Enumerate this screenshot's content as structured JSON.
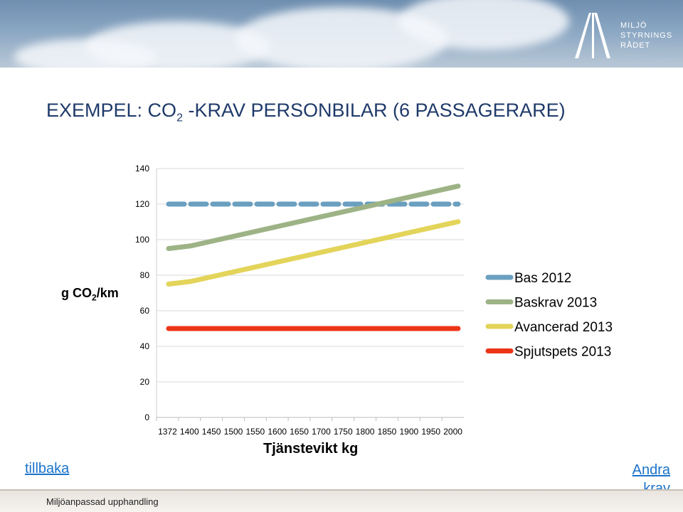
{
  "header": {
    "logo_lines": [
      "MILJÖ",
      "STYRNINGS",
      "RÅDET"
    ]
  },
  "title": {
    "prefix": "EXEMPEL: CO",
    "subscript": "2",
    "suffix": " -KRAV PERSONBILAR (6 PASSAGERARE)"
  },
  "axis": {
    "ylabel_prefix": "g CO",
    "ylabel_sub": "2",
    "ylabel_suffix": "/km",
    "xlabel": "Tjänstevikt kg"
  },
  "nav": {
    "back_label": "tillbaka",
    "forward_label": "Andra krav"
  },
  "footer": {
    "text": "Miljöanpassad upphandling"
  },
  "colors": {
    "bas": "#6a9fc0",
    "baskrav": "#9db386",
    "avancerad": "#e3d45a",
    "spjutspets": "#ec3417",
    "title": "#1f3a6a",
    "link": "#1a73c9"
  },
  "chart_data": {
    "type": "line",
    "x": [
      "1372",
      "1400",
      "1450",
      "1500",
      "1550",
      "1600",
      "1650",
      "1700",
      "1750",
      "1800",
      "1850",
      "1900",
      "1950",
      "2000"
    ],
    "ylim": [
      0,
      140
    ],
    "yticks": [
      0,
      20,
      40,
      60,
      80,
      100,
      120,
      140
    ],
    "grid": true,
    "legend_position": "right",
    "series": [
      {
        "name": "Bas 2012",
        "style": "dashed",
        "values": [
          120,
          120,
          120,
          120,
          120,
          120,
          120,
          120,
          120,
          120,
          120,
          120,
          120,
          120
        ]
      },
      {
        "name": "Baskrav 2013",
        "style": "solid",
        "values": [
          95,
          96.5,
          99.3,
          102.1,
          104.9,
          107.7,
          110.5,
          113.3,
          116.1,
          118.9,
          121.7,
          124.5,
          127.3,
          130.1
        ]
      },
      {
        "name": "Avancerad 2013",
        "style": "solid",
        "values": [
          75,
          76.5,
          79.3,
          82.1,
          84.9,
          87.7,
          90.5,
          93.3,
          96.1,
          98.9,
          101.7,
          104.5,
          107.3,
          110.1
        ]
      },
      {
        "name": "Spjutspets 2013",
        "style": "solid",
        "values": [
          50,
          50,
          50,
          50,
          50,
          50,
          50,
          50,
          50,
          50,
          50,
          50,
          50,
          50
        ]
      }
    ]
  }
}
